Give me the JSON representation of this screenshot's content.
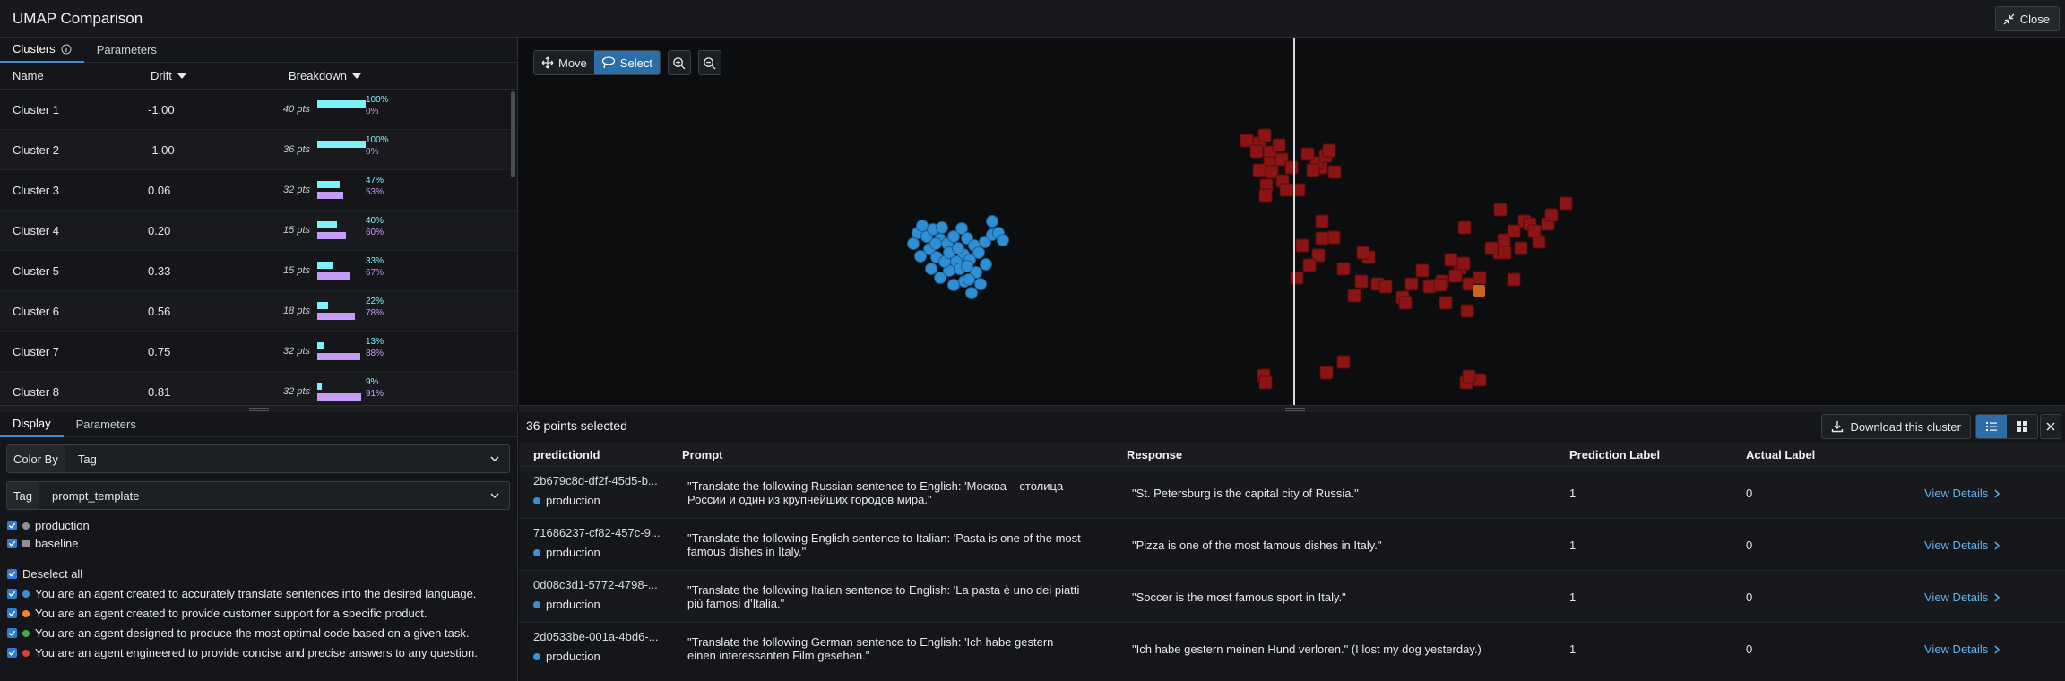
{
  "window": {
    "title": "UMAP Comparison",
    "close_label": "Close"
  },
  "left_top": {
    "tabs": [
      {
        "label": "Clusters"
      },
      {
        "label": "Parameters"
      }
    ],
    "columns": {
      "name": "Name",
      "drift": "Drift",
      "breakdown": "Breakdown"
    },
    "clusters": [
      {
        "name": "Cluster 1",
        "drift": "-1.00",
        "pts": "40 pts",
        "prod_pct": "100%",
        "base_pct": "0%",
        "prod": 1.0,
        "base": 0.0
      },
      {
        "name": "Cluster 2",
        "drift": "-1.00",
        "pts": "36 pts",
        "prod_pct": "100%",
        "base_pct": "0%",
        "prod": 1.0,
        "base": 0.0
      },
      {
        "name": "Cluster 3",
        "drift": "0.06",
        "pts": "32 pts",
        "prod_pct": "47%",
        "base_pct": "53%",
        "prod": 0.47,
        "base": 0.53
      },
      {
        "name": "Cluster 4",
        "drift": "0.20",
        "pts": "15 pts",
        "prod_pct": "40%",
        "base_pct": "60%",
        "prod": 0.4,
        "base": 0.6
      },
      {
        "name": "Cluster 5",
        "drift": "0.33",
        "pts": "15 pts",
        "prod_pct": "33%",
        "base_pct": "67%",
        "prod": 0.33,
        "base": 0.67
      },
      {
        "name": "Cluster 6",
        "drift": "0.56",
        "pts": "18 pts",
        "prod_pct": "22%",
        "base_pct": "78%",
        "prod": 0.22,
        "base": 0.78
      },
      {
        "name": "Cluster 7",
        "drift": "0.75",
        "pts": "32 pts",
        "prod_pct": "13%",
        "base_pct": "88%",
        "prod": 0.13,
        "base": 0.88
      },
      {
        "name": "Cluster 8",
        "drift": "0.81",
        "pts": "32 pts",
        "prod_pct": "9%",
        "base_pct": "91%",
        "prod": 0.09,
        "base": 0.91
      }
    ]
  },
  "left_bottom": {
    "tabs": [
      {
        "label": "Display"
      },
      {
        "label": "Parameters"
      }
    ],
    "color_by": {
      "label": "Color By",
      "value": "Tag"
    },
    "tag": {
      "label": "Tag",
      "value": "prompt_template"
    },
    "environments": [
      {
        "label": "production",
        "color": "#8e9196"
      },
      {
        "label": "baseline",
        "color": "#8e9196"
      }
    ],
    "deselect_label": "Deselect all",
    "templates": [
      {
        "label": "You are an agent created to accurately translate sentences into the desired language.",
        "color": "#3a8fd6"
      },
      {
        "label": "You are an agent created to provide customer support for a specific product.",
        "color": "#f08a24"
      },
      {
        "label": "You are an agent designed to produce the most optimal code based on a given task.",
        "color": "#3fae49"
      },
      {
        "label": "You are an agent engineered to provide concise and precise answers to any question.",
        "color": "#e03b3b"
      }
    ]
  },
  "plot": {
    "move_label": "Move",
    "select_label": "Select",
    "selected_color": "#2e8fd4",
    "unselected_color": "#8b1414"
  },
  "selection": {
    "summary": "36 points selected",
    "download_label": "Download this cluster",
    "columns": {
      "id": "predictionId",
      "prompt": "Prompt",
      "response": "Response",
      "prediction_label": "Prediction Label",
      "actual_label": "Actual Label"
    },
    "rows": [
      {
        "id": "2b679c8d-df2f-45d5-b...",
        "env": "production",
        "prompt": "\"Translate the following Russian sentence to English: 'Москва – столица России и один из крупнейших городов мира.\"",
        "response": "\"St. Petersburg is the capital city of Russia.\"",
        "prediction_label": "1",
        "actual_label": "0",
        "link": "View Details"
      },
      {
        "id": "71686237-cf82-457c-9...",
        "env": "production",
        "prompt": "\"Translate the following English sentence to Italian: 'Pasta is one of the most famous dishes in Italy.\"",
        "response": "\"Pizza is one of the most famous dishes in Italy.\"",
        "prediction_label": "1",
        "actual_label": "0",
        "link": "View Details"
      },
      {
        "id": "0d08c3d1-5772-4798-...",
        "env": "production",
        "prompt": "\"Translate the following Italian sentence to English: 'La pasta è uno dei piatti più famosi d'Italia.\"",
        "response": "\"Soccer is the most famous sport in Italy.\"",
        "prediction_label": "1",
        "actual_label": "0",
        "link": "View Details"
      },
      {
        "id": "2d0533be-001a-4bd6-...",
        "env": "production",
        "prompt": "\"Translate the following German sentence to English: 'Ich habe gestern einen interessanten Film gesehen.\"",
        "response": "\"Ich habe gestern meinen Hund verloren.\" (I lost my dog yesterday.)",
        "prediction_label": "1",
        "actual_label": "0",
        "link": "View Details"
      }
    ]
  }
}
